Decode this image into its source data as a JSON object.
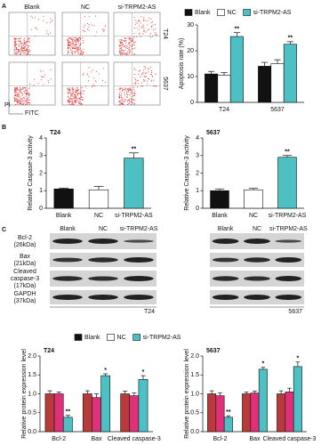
{
  "panel_labels": [
    "A",
    "B",
    "C"
  ],
  "flow_cytometry": {
    "columns": [
      "Blank",
      "NC",
      "si-TRPM2-AS"
    ],
    "rows": [
      "T24",
      "5637"
    ],
    "y_axis": "PI",
    "x_axis": "FITC"
  },
  "western_blot": {
    "lanes": [
      "Blank",
      "NC",
      "si-TRPM2-AS"
    ],
    "proteins": [
      [
        "Bcl-2",
        "(26kDa)"
      ],
      [
        "Bax",
        "(21kDa)"
      ],
      [
        "Cleaved",
        "caspase-3",
        "(17kDa)"
      ],
      [
        "GAPDH",
        "(37kDa)"
      ]
    ],
    "cell_lines": [
      "T24",
      "5637"
    ]
  },
  "chart_data": [
    {
      "type": "grouped_bar",
      "ylabel": "Apoptosis rate (%)",
      "categories": [
        "T24",
        "5637"
      ],
      "ylim": [
        0,
        30
      ],
      "yticks": [
        0,
        10,
        20,
        30
      ],
      "legend": "top",
      "series": [
        {
          "name": "Blank",
          "color": "#111111",
          "values": [
            11,
            14
          ],
          "errors": [
            1,
            1.5
          ]
        },
        {
          "name": "NC",
          "color": "#ffffff",
          "values": [
            10.5,
            15
          ],
          "errors": [
            1,
            1.5
          ]
        },
        {
          "name": "si-TRPM2-AS",
          "color": "#4dc0c4",
          "values": [
            25.5,
            22.5
          ],
          "errors": [
            1.5,
            1
          ],
          "annotations": [
            "**",
            "**"
          ]
        }
      ]
    },
    {
      "type": "bar",
      "title": "T24",
      "ylabel": "Relative Caspase-3 activity",
      "categories": [
        "Blank",
        "NC",
        "si-TRPM2-AS"
      ],
      "values": [
        1.1,
        1.05,
        2.85
      ],
      "errors": [
        0.05,
        0.2,
        0.3
      ],
      "colors": [
        "#111111",
        "#ffffff",
        "#4dc0c4"
      ],
      "annotations": [
        null,
        null,
        "**"
      ],
      "ylim": [
        0,
        4
      ],
      "yticks": [
        0,
        1,
        2,
        3,
        4
      ]
    },
    {
      "type": "bar",
      "title": "5637",
      "ylabel": "Relative Caspase-3 activity",
      "categories": [
        "Blank",
        "NC",
        "si-TRPM2-AS"
      ],
      "values": [
        1.0,
        1.05,
        2.9
      ],
      "errors": [
        0.1,
        0.08,
        0.1
      ],
      "colors": [
        "#111111",
        "#ffffff",
        "#4dc0c4"
      ],
      "annotations": [
        null,
        null,
        "**"
      ],
      "ylim": [
        0,
        4
      ],
      "yticks": [
        0,
        1,
        2,
        3,
        4
      ]
    },
    {
      "type": "grouped_bar",
      "title": "T24",
      "ylabel": "Relative protein expression level",
      "categories": [
        "Bcl-2",
        "Bax",
        "Cleaved caspase-3"
      ],
      "ylim": [
        0,
        2
      ],
      "yticks": [
        {
          "value": 0,
          "label": "0.0"
        },
        {
          "value": 0.5,
          "label": "0.5"
        },
        {
          "value": 1,
          "label": "1.0"
        },
        {
          "value": 1.5,
          "label": "1.5"
        },
        {
          "value": 2,
          "label": "2.0"
        }
      ],
      "legend": "top",
      "series": [
        {
          "name": "Blank",
          "color": "#b83a3a",
          "legend_color": "#111111",
          "values": [
            1.0,
            1.0,
            1.0
          ],
          "errors": [
            0.08,
            0.08,
            0.07
          ]
        },
        {
          "name": "NC",
          "color": "#e0307a",
          "legend_color": "#ffffff",
          "values": [
            1.0,
            0.9,
            0.95
          ],
          "errors": [
            0.05,
            0.1,
            0.07
          ]
        },
        {
          "name": "si-TRPM2-AS",
          "color": "#4dc0c4",
          "legend_color": "#4dc0c4",
          "values": [
            0.38,
            1.48,
            1.38
          ],
          "errors": [
            0.05,
            0.05,
            0.1
          ],
          "annotations": [
            "**",
            "*",
            "*"
          ]
        }
      ]
    },
    {
      "type": "grouped_bar",
      "title": "5637",
      "ylabel": "Relative protein expression level",
      "categories": [
        "Bcl-2",
        "Bax",
        "Cleaved caspase-3"
      ],
      "ylim": [
        0,
        2
      ],
      "yticks": [
        {
          "value": 0,
          "label": "0.0"
        },
        {
          "value": 0.5,
          "label": "0.5"
        },
        {
          "value": 1,
          "label": "1.0"
        },
        {
          "value": 1.5,
          "label": "1.5"
        },
        {
          "value": 2,
          "label": "2.0"
        }
      ],
      "series": [
        {
          "name": "Blank",
          "color": "#b83a3a",
          "values": [
            1.0,
            1.0,
            1.0
          ],
          "errors": [
            0.08,
            0.05,
            0.08
          ]
        },
        {
          "name": "NC",
          "color": "#e0307a",
          "values": [
            0.95,
            1.02,
            1.05
          ],
          "errors": [
            0.07,
            0.05,
            0.1
          ]
        },
        {
          "name": "si-TRPM2-AS",
          "color": "#4dc0c4",
          "values": [
            0.38,
            1.65,
            1.72
          ],
          "errors": [
            0.04,
            0.05,
            0.12
          ],
          "annotations": [
            "**",
            "*",
            "*"
          ]
        }
      ]
    }
  ]
}
